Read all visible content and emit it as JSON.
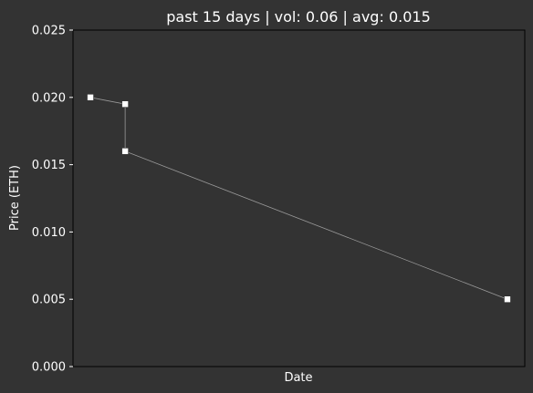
{
  "chart_data": {
    "type": "line",
    "title": "past 15 days | vol: 0.06 | avg: 0.015",
    "xlabel": "Date",
    "ylabel": "Price (ETH)",
    "ylim": [
      0,
      0.025
    ],
    "yticks": [
      "0.000",
      "0.005",
      "0.010",
      "0.015",
      "0.020",
      "0.025"
    ],
    "xticks": [],
    "grid": false,
    "series": [
      {
        "x": [
          1,
          2,
          2,
          13
        ],
        "y": [
          0.02,
          0.0195,
          0.016,
          0.005
        ]
      }
    ],
    "xlim": [
      0.5,
      13.5
    ],
    "colors": {
      "background": "#333333",
      "line": "#9a9a9a",
      "marker": "#ffffff"
    }
  }
}
